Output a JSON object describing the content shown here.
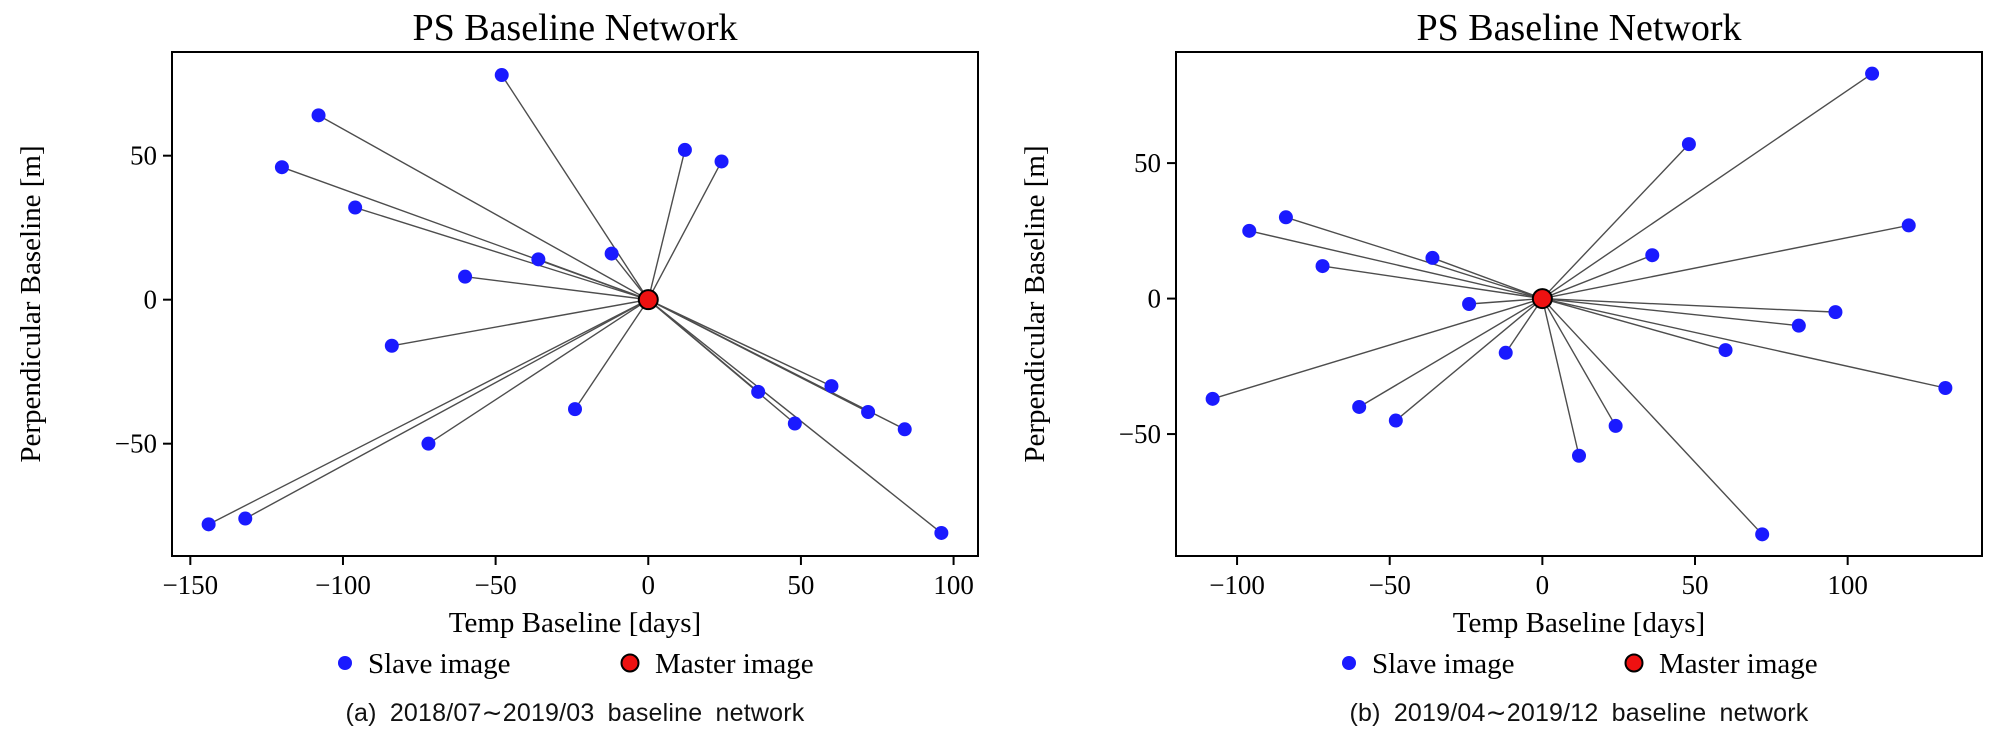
{
  "chart_data": [
    {
      "type": "scatter",
      "title": "PS Baseline Network",
      "xlabel": "Temp Baseline [days]",
      "ylabel": "Perpendicular Baseline [m]",
      "caption": "(a) 2018/07∼2019/03 baseline network",
      "xlim": [
        -156,
        108
      ],
      "ylim": [
        -89,
        86
      ],
      "xticks": [
        -150,
        -100,
        -50,
        0,
        50,
        100
      ],
      "yticks": [
        -50,
        0,
        50
      ],
      "grid": false,
      "legend_position": "below",
      "line_color": "#4d4d4d",
      "edges": "line from master point to every slave point",
      "series": [
        {
          "name": "Slave image",
          "marker": "circle",
          "color": "#1a1aff",
          "points": [
            [
              -144,
              -78
            ],
            [
              -132,
              -76
            ],
            [
              -120,
              46
            ],
            [
              -108,
              64
            ],
            [
              -96,
              32
            ],
            [
              -84,
              -16
            ],
            [
              -72,
              -50
            ],
            [
              -60,
              8
            ],
            [
              -48,
              78
            ],
            [
              -36,
              14
            ],
            [
              -24,
              -38
            ],
            [
              -12,
              16
            ],
            [
              12,
              52
            ],
            [
              24,
              48
            ],
            [
              36,
              -32
            ],
            [
              48,
              -43
            ],
            [
              60,
              -30
            ],
            [
              72,
              -39
            ],
            [
              84,
              -45
            ],
            [
              96,
              -81
            ]
          ]
        },
        {
          "name": "Master image",
          "marker": "circle",
          "color": "#ee1111",
          "edge_color": "#000000",
          "points": [
            [
              0,
              0
            ]
          ]
        }
      ]
    },
    {
      "type": "scatter",
      "title": "PS Baseline Network",
      "xlabel": "Temp Baseline [days]",
      "ylabel": "Perpendicular Baseline [m]",
      "caption": "(b) 2019/04∼2019/12 baseline network",
      "xlim": [
        -120,
        144
      ],
      "ylim": [
        -95,
        91
      ],
      "xticks": [
        -100,
        -50,
        0,
        50,
        100
      ],
      "yticks": [
        -50,
        0,
        50
      ],
      "grid": false,
      "legend_position": "below",
      "line_color": "#4d4d4d",
      "edges": "line from master point to every slave point",
      "series": [
        {
          "name": "Slave image",
          "marker": "circle",
          "color": "#1a1aff",
          "points": [
            [
              -108,
              -37
            ],
            [
              -96,
              25
            ],
            [
              -84,
              30
            ],
            [
              -72,
              12
            ],
            [
              -60,
              -40
            ],
            [
              -48,
              -45
            ],
            [
              -36,
              15
            ],
            [
              -24,
              -2
            ],
            [
              -12,
              -20
            ],
            [
              12,
              -58
            ],
            [
              24,
              -47
            ],
            [
              36,
              16
            ],
            [
              48,
              57
            ],
            [
              60,
              -19
            ],
            [
              72,
              -87
            ],
            [
              84,
              -10
            ],
            [
              96,
              -5
            ],
            [
              108,
              83
            ],
            [
              120,
              27
            ],
            [
              132,
              -33
            ]
          ]
        },
        {
          "name": "Master image",
          "marker": "circle",
          "color": "#ee1111",
          "edge_color": "#000000",
          "points": [
            [
              0,
              0
            ]
          ]
        }
      ]
    }
  ]
}
